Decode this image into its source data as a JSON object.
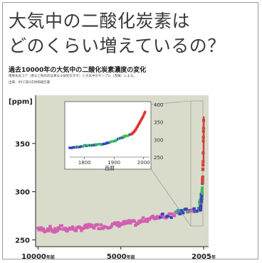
{
  "header": {
    "title_line1": "大気中の二酸化炭素は",
    "title_line2": "どのくらい増えているの？",
    "subtitle": "過去10000年の大気中の二酸化炭素濃度の変化",
    "note1": "南極氷床コア（青など他の印は異なる研究を示す）と大気中のサンプル（赤線）による。",
    "note2": "出典：IPCC第4次評価報告書"
  },
  "colors": {
    "ice_core": "#d35fb0",
    "ice_core_blue": "#3a3cc8",
    "ice_core_teal": "#2aa59a",
    "ice_core_green": "#3cc23c",
    "atmosphere": "#e33030",
    "plot_bg": "#d9dccb",
    "inset_bg": "#ffffff"
  },
  "chart_data": [
    {
      "type": "scatter",
      "ylabel": "[ppm]",
      "y_ticks": [
        "250",
        "300",
        "350"
      ],
      "y_tick_values": [
        250,
        300,
        350
      ],
      "x_ticks": [
        {
          "label": "10000",
          "unit": "年前",
          "value": 0
        },
        {
          "label": "5000",
          "unit": "年前",
          "value": 5000
        },
        {
          "label": "2005",
          "unit": "年",
          "value": 10000
        }
      ],
      "ylim": [
        243,
        400
      ],
      "xlim": [
        -150,
        10300
      ],
      "grid": false,
      "series": [
        {
          "x": [
            0,
            300,
            700,
            1000,
            1400,
            1700,
            2000,
            2400,
            2800,
            3200,
            3600,
            4000,
            4400,
            4800,
            5200,
            5600,
            6000,
            6400,
            6800,
            7200,
            7600,
            8000,
            8400,
            8800,
            9200,
            9500,
            9750
          ],
          "y": [
            262,
            260,
            262,
            259,
            263,
            261,
            262,
            261,
            263,
            264,
            264,
            264,
            265,
            266,
            267,
            268,
            267,
            271,
            272,
            274,
            275,
            275,
            278,
            280,
            280,
            282,
            282
          ]
        },
        {
          "x": [
            9760,
            9790,
            9820,
            9850,
            9880,
            9905,
            9920,
            9935,
            9950,
            9960,
            9970,
            9980,
            9990,
            10000
          ],
          "y": [
            285,
            290,
            285,
            295,
            292,
            300,
            305,
            310,
            318,
            325,
            335,
            350,
            365,
            378
          ]
        }
      ]
    },
    {
      "type": "scatter",
      "x_ticks": [
        "1800",
        "1900",
        "2000"
      ],
      "x_tick_values": [
        1800,
        1900,
        2000
      ],
      "xlabel": "西暦",
      "y_ticks": [
        "400",
        "350",
        "300",
        "250"
      ],
      "y_tick_values": [
        400,
        350,
        300,
        250
      ],
      "xlim": [
        1750,
        2020
      ],
      "ylim": [
        250,
        400
      ],
      "series": [
        {
          "x": [
            1750,
            1760,
            1770,
            1780,
            1790,
            1800,
            1810,
            1820,
            1830,
            1840,
            1850,
            1860,
            1870,
            1880,
            1890,
            1900,
            1910,
            1920,
            1930,
            1940,
            1950,
            1955
          ],
          "y": [
            277,
            276,
            279,
            280,
            280,
            283,
            283,
            284,
            284,
            285,
            286,
            287,
            289,
            291,
            294,
            296,
            300,
            303,
            307,
            311,
            312,
            314
          ]
        },
        {
          "x": [
            1958,
            1965,
            1970,
            1975,
            1980,
            1985,
            1990,
            1995,
            2000,
            2005
          ],
          "y": [
            315,
            320,
            325,
            331,
            338,
            346,
            354,
            361,
            369,
            379
          ]
        }
      ]
    }
  ]
}
